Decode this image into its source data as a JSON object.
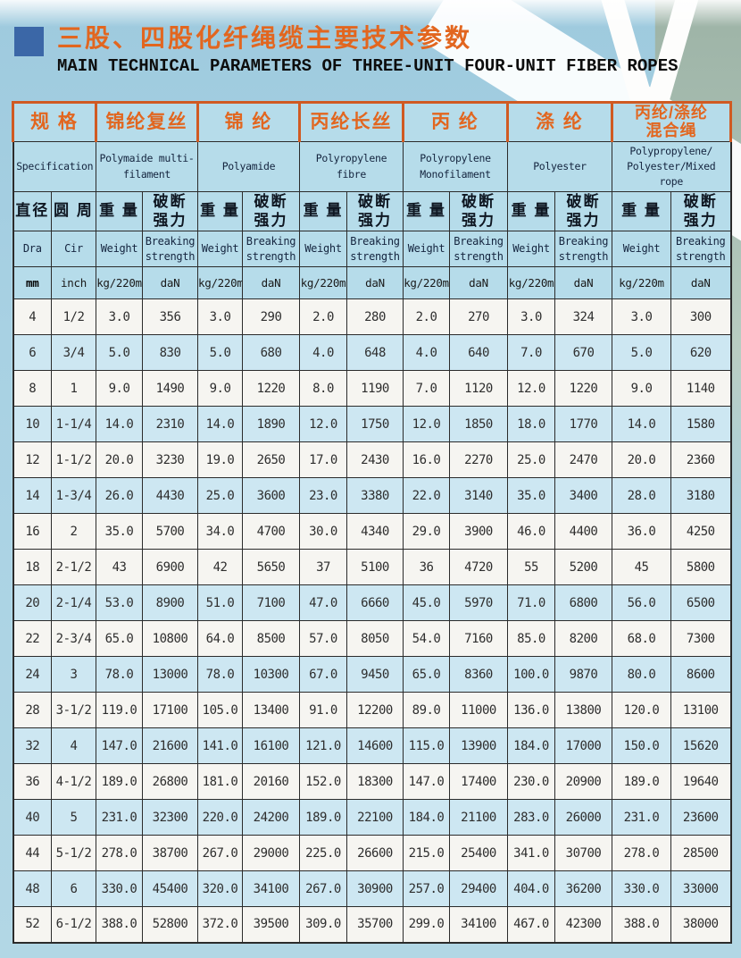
{
  "page": {
    "title_cn": "三股、四股化纤绳缆主要技术参数",
    "title_en": "MAIN TECHNICAL PARAMETERS OF THREE-UNIT FOUR-UNIT FIBER ROPES"
  },
  "colors": {
    "accent_orange": "#e2661f",
    "table_border_orange": "#d05a22",
    "header_cell_blue": "#b6dcea",
    "row_shade_blue": "#cde7f2",
    "row_white": "#f6f5f1",
    "page_background_blue": "#a8d1e3",
    "bullet_blue": "#3b67a7",
    "right_strip_green": "#aac0b4"
  },
  "table": {
    "groups": [
      {
        "cn": "规 格",
        "en": "Specification"
      },
      {
        "cn": "锦纶复丝",
        "en": "Polymaide multi-\nfilament"
      },
      {
        "cn": "锦 纶",
        "en": "Polyamide"
      },
      {
        "cn": "丙纶长丝",
        "en": "Polyropylene\nfibre"
      },
      {
        "cn": "丙 纶",
        "en": "Polyropylene\nMonofilament"
      },
      {
        "cn": "涤 纶",
        "en": "Polyester"
      },
      {
        "cn": "丙纶/涤纶\n混合绳",
        "en": "Polypropylene/\nPolyester/Mixed\nrope"
      }
    ],
    "spec_sub": {
      "dia_cn": "直径",
      "cir_cn": "圆 周",
      "dia_en": "Dra",
      "cir_en": "Cir",
      "dia_unit": "mm",
      "cir_unit": "inch"
    },
    "measure_sub": {
      "weight_cn": "重 量",
      "breaking_cn": "破断\n强力",
      "weight_en": "Weight",
      "breaking_en": "Breaking\nstrength",
      "weight_unit": "kg/220m",
      "breaking_unit": "daN"
    },
    "rows": [
      {
        "dia": "4",
        "cir": "1/2",
        "shade": false,
        "cells": [
          "3.0",
          "356",
          "3.0",
          "290",
          "2.0",
          "280",
          "2.0",
          "270",
          "3.0",
          "324",
          "3.0",
          "300"
        ]
      },
      {
        "dia": "6",
        "cir": "3/4",
        "shade": true,
        "cells": [
          "5.0",
          "830",
          "5.0",
          "680",
          "4.0",
          "648",
          "4.0",
          "640",
          "7.0",
          "670",
          "5.0",
          "620"
        ]
      },
      {
        "dia": "8",
        "cir": "1",
        "shade": false,
        "cells": [
          "9.0",
          "1490",
          "9.0",
          "1220",
          "8.0",
          "1190",
          "7.0",
          "1120",
          "12.0",
          "1220",
          "9.0",
          "1140"
        ]
      },
      {
        "dia": "10",
        "cir": "1-1/4",
        "shade": true,
        "cells": [
          "14.0",
          "2310",
          "14.0",
          "1890",
          "12.0",
          "1750",
          "12.0",
          "1850",
          "18.0",
          "1770",
          "14.0",
          "1580"
        ]
      },
      {
        "dia": "12",
        "cir": "1-1/2",
        "shade": false,
        "cells": [
          "20.0",
          "3230",
          "19.0",
          "2650",
          "17.0",
          "2430",
          "16.0",
          "2270",
          "25.0",
          "2470",
          "20.0",
          "2360"
        ]
      },
      {
        "dia": "14",
        "cir": "1-3/4",
        "shade": true,
        "cells": [
          "26.0",
          "4430",
          "25.0",
          "3600",
          "23.0",
          "3380",
          "22.0",
          "3140",
          "35.0",
          "3400",
          "28.0",
          "3180"
        ]
      },
      {
        "dia": "16",
        "cir": "2",
        "shade": false,
        "cells": [
          "35.0",
          "5700",
          "34.0",
          "4700",
          "30.0",
          "4340",
          "29.0",
          "3900",
          "46.0",
          "4400",
          "36.0",
          "4250"
        ]
      },
      {
        "dia": "18",
        "cir": "2-1/2",
        "shade": false,
        "cells": [
          "43",
          "6900",
          "42",
          "5650",
          "37",
          "5100",
          "36",
          "4720",
          "55",
          "5200",
          "45",
          "5800"
        ]
      },
      {
        "dia": "20",
        "cir": "2-1/4",
        "shade": true,
        "cells": [
          "53.0",
          "8900",
          "51.0",
          "7100",
          "47.0",
          "6660",
          "45.0",
          "5970",
          "71.0",
          "6800",
          "56.0",
          "6500"
        ]
      },
      {
        "dia": "22",
        "cir": "2-3/4",
        "shade": false,
        "cells": [
          "65.0",
          "10800",
          "64.0",
          "8500",
          "57.0",
          "8050",
          "54.0",
          "7160",
          "85.0",
          "8200",
          "68.0",
          "7300"
        ]
      },
      {
        "dia": "24",
        "cir": "3",
        "shade": true,
        "cells": [
          "78.0",
          "13000",
          "78.0",
          "10300",
          "67.0",
          "9450",
          "65.0",
          "8360",
          "100.0",
          "9870",
          "80.0",
          "8600"
        ]
      },
      {
        "dia": "28",
        "cir": "3-1/2",
        "shade": false,
        "cells": [
          "119.0",
          "17100",
          "105.0",
          "13400",
          "91.0",
          "12200",
          "89.0",
          "11000",
          "136.0",
          "13800",
          "120.0",
          "13100"
        ]
      },
      {
        "dia": "32",
        "cir": "4",
        "shade": true,
        "cells": [
          "147.0",
          "21600",
          "141.0",
          "16100",
          "121.0",
          "14600",
          "115.0",
          "13900",
          "184.0",
          "17000",
          "150.0",
          "15620"
        ]
      },
      {
        "dia": "36",
        "cir": "4-1/2",
        "shade": false,
        "cells": [
          "189.0",
          "26800",
          "181.0",
          "20160",
          "152.0",
          "18300",
          "147.0",
          "17400",
          "230.0",
          "20900",
          "189.0",
          "19640"
        ]
      },
      {
        "dia": "40",
        "cir": "5",
        "shade": true,
        "cells": [
          "231.0",
          "32300",
          "220.0",
          "24200",
          "189.0",
          "22100",
          "184.0",
          "21100",
          "283.0",
          "26000",
          "231.0",
          "23600"
        ]
      },
      {
        "dia": "44",
        "cir": "5-1/2",
        "shade": false,
        "cells": [
          "278.0",
          "38700",
          "267.0",
          "29000",
          "225.0",
          "26600",
          "215.0",
          "25400",
          "341.0",
          "30700",
          "278.0",
          "28500"
        ]
      },
      {
        "dia": "48",
        "cir": "6",
        "shade": true,
        "cells": [
          "330.0",
          "45400",
          "320.0",
          "34100",
          "267.0",
          "30900",
          "257.0",
          "29400",
          "404.0",
          "36200",
          "330.0",
          "33000"
        ]
      },
      {
        "dia": "52",
        "cir": "6-1/2",
        "shade": false,
        "cells": [
          "388.0",
          "52800",
          "372.0",
          "39500",
          "309.0",
          "35700",
          "299.0",
          "34100",
          "467.0",
          "42300",
          "388.0",
          "38000"
        ]
      }
    ]
  }
}
